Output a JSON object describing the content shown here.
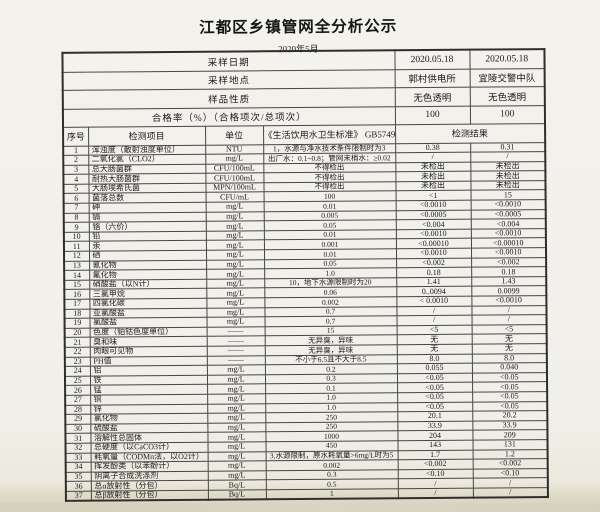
{
  "title": "江都区乡镇管网全分析公示",
  "subtitle": "2020年5月",
  "info_rows": [
    {
      "label": "采样日期",
      "values": [
        "2020.05.18",
        "2020.05.18"
      ]
    },
    {
      "label": "采样地点",
      "values": [
        "郭村供电所",
        "宜陵交警中队"
      ]
    },
    {
      "label": "样品性质",
      "values": [
        "无色透明",
        "无色透明"
      ]
    },
    {
      "label": "合格率（%）（合格项次/总项次）",
      "values": [
        "100",
        "100"
      ]
    }
  ],
  "columns": {
    "no": "序号",
    "item": "检测项目",
    "unit": "单位",
    "standard": "《生活饮用水卫生标准》 GB5749",
    "result": "检测结果"
  },
  "rows": [
    {
      "no": "1",
      "item": "浑浊度（散射浊度单位）",
      "unit": "NTU",
      "standard": "1，水源与净水技术条件限制时为3",
      "r1": "0.38",
      "r2": "0.31"
    },
    {
      "no": "2",
      "item": "二氧化氯（CLO2）",
      "unit": "mg/L",
      "standard": "出厂水：0.1~0.8；管网末梢水：≥0.02",
      "r1": "/",
      "r2": "/"
    },
    {
      "no": "3",
      "item": "总大肠菌群",
      "unit": "CFU/100mL",
      "standard": "不得检出",
      "r1": "未检出",
      "r2": "未检出"
    },
    {
      "no": "4",
      "item": "耐热大肠菌群",
      "unit": "CFU/100mL",
      "standard": "不得检出",
      "r1": "未检出",
      "r2": "未检出"
    },
    {
      "no": "5",
      "item": "大肠埃希氏菌",
      "unit": "MPN/100mL",
      "standard": "不得检出",
      "r1": "未检出",
      "r2": "未检出"
    },
    {
      "no": "6",
      "item": "菌落总数",
      "unit": "CFU/mL",
      "standard": "100",
      "r1": "<1",
      "r2": "15"
    },
    {
      "no": "7",
      "item": "砷",
      "unit": "mg/L",
      "standard": "0.01",
      "r1": "<0.0010",
      "r2": "<0.0010"
    },
    {
      "no": "8",
      "item": "镉",
      "unit": "mg/L",
      "standard": "0.005",
      "r1": "<0.0005",
      "r2": "<0.0005"
    },
    {
      "no": "9",
      "item": "铬（六价）",
      "unit": "mg/L",
      "standard": "0.05",
      "r1": "<0.004",
      "r2": "<0.004"
    },
    {
      "no": "10",
      "item": "铅",
      "unit": "mg/L",
      "standard": "0.01",
      "r1": "<0.0010",
      "r2": "<0.0010"
    },
    {
      "no": "11",
      "item": "汞",
      "unit": "mg/L",
      "standard": "0.001",
      "r1": "<0.00010",
      "r2": "<0.00010"
    },
    {
      "no": "12",
      "item": "硒",
      "unit": "mg/L",
      "standard": "0.01",
      "r1": "<0.0010",
      "r2": "<0.0010"
    },
    {
      "no": "13",
      "item": "氰化物",
      "unit": "mg/L",
      "standard": "0.05",
      "r1": "<0.002",
      "r2": "<0.002"
    },
    {
      "no": "14",
      "item": "氟化物",
      "unit": "mg/L",
      "standard": "1.0",
      "r1": "0.18",
      "r2": "0.18"
    },
    {
      "no": "15",
      "item": "硝酸盐（以N计）",
      "unit": "mg/L",
      "standard": "10，地下水源限制时为20",
      "r1": "1.41",
      "r2": "1.43"
    },
    {
      "no": "16",
      "item": "三氯甲烷",
      "unit": "mg/L",
      "standard": "0.06",
      "r1": "0..0094",
      "r2": "0.0099"
    },
    {
      "no": "17",
      "item": "四氯化碳",
      "unit": "mg/L",
      "standard": "0.002",
      "r1": "< 0.0010",
      "r2": "<0.0010"
    },
    {
      "no": "18",
      "item": "亚氯酸盐",
      "unit": "mg/L",
      "standard": "0.7",
      "r1": "/",
      "r2": "/"
    },
    {
      "no": "19",
      "item": "氯酸盐",
      "unit": "mg/L",
      "standard": "0.7",
      "r1": "/",
      "r2": "/"
    },
    {
      "no": "20",
      "item": "色度（铂钴色度单位）",
      "unit": "——",
      "standard": "15",
      "r1": "<5",
      "r2": "<5"
    },
    {
      "no": "21",
      "item": "臭和味",
      "unit": "——",
      "standard": "无异臭，异味",
      "r1": "无",
      "r2": "无"
    },
    {
      "no": "22",
      "item": "肉眼可见物",
      "unit": "——",
      "standard": "无异臭，异味",
      "r1": "无",
      "r2": "无"
    },
    {
      "no": "23",
      "item": "PH值",
      "unit": "——",
      "standard": "不小于6.5且不大于8.5",
      "r1": "8.0",
      "r2": "8.0"
    },
    {
      "no": "24",
      "item": "铝",
      "unit": "mg/L",
      "standard": "0.2",
      "r1": "0.055",
      "r2": "0.040"
    },
    {
      "no": "25",
      "item": "铁",
      "unit": "mg/L",
      "standard": "0.3",
      "r1": "<0.05",
      "r2": "<0.05"
    },
    {
      "no": "26",
      "item": "锰",
      "unit": "mg/L",
      "standard": "0.1",
      "r1": "<0.05",
      "r2": "<0.05"
    },
    {
      "no": "27",
      "item": "铜",
      "unit": "mg/L",
      "standard": "1.0",
      "r1": "<0.05",
      "r2": "<0.05"
    },
    {
      "no": "28",
      "item": "锌",
      "unit": "mg/L",
      "standard": "1.0",
      "r1": "<0.05",
      "r2": "<0.05"
    },
    {
      "no": "29",
      "item": "氯化物",
      "unit": "mg/L",
      "standard": "250",
      "r1": "20.1",
      "r2": "20.2"
    },
    {
      "no": "30",
      "item": "硫酸盐",
      "unit": "mg/L",
      "standard": "250",
      "r1": "33.9",
      "r2": "33.9"
    },
    {
      "no": "31",
      "item": "溶解性总固体",
      "unit": "mg/L",
      "standard": "1000",
      "r1": "204",
      "r2": "209"
    },
    {
      "no": "32",
      "item": "总硬度（以CaCO3计）",
      "unit": "mg/L",
      "standard": "450",
      "r1": "143",
      "r2": "131"
    },
    {
      "no": "33",
      "item": "耗氧量（CODMn法，以O2计）",
      "unit": "mg/L",
      "standard": "3,水源限制，原水耗氧量>6mg/L时为5",
      "r1": "1.7",
      "r2": "1.2"
    },
    {
      "no": "34",
      "item": "挥发酚类（以苯酚计）",
      "unit": "mg/L",
      "standard": "0.002",
      "r1": "<0.002",
      "r2": "<0.002"
    },
    {
      "no": "35",
      "item": "阴离子合成洗涤剂",
      "unit": "mg/L",
      "standard": "0.3",
      "r1": "<0.10",
      "r2": "<0.10"
    },
    {
      "no": "36",
      "item": "总α放射性（分包）",
      "unit": "Bq/L",
      "standard": "0.5",
      "r1": "/",
      "r2": "/"
    },
    {
      "no": "37",
      "item": "总β放射性（分包）",
      "unit": "Bq/L",
      "standard": "1",
      "r1": "/",
      "r2": "/"
    }
  ]
}
